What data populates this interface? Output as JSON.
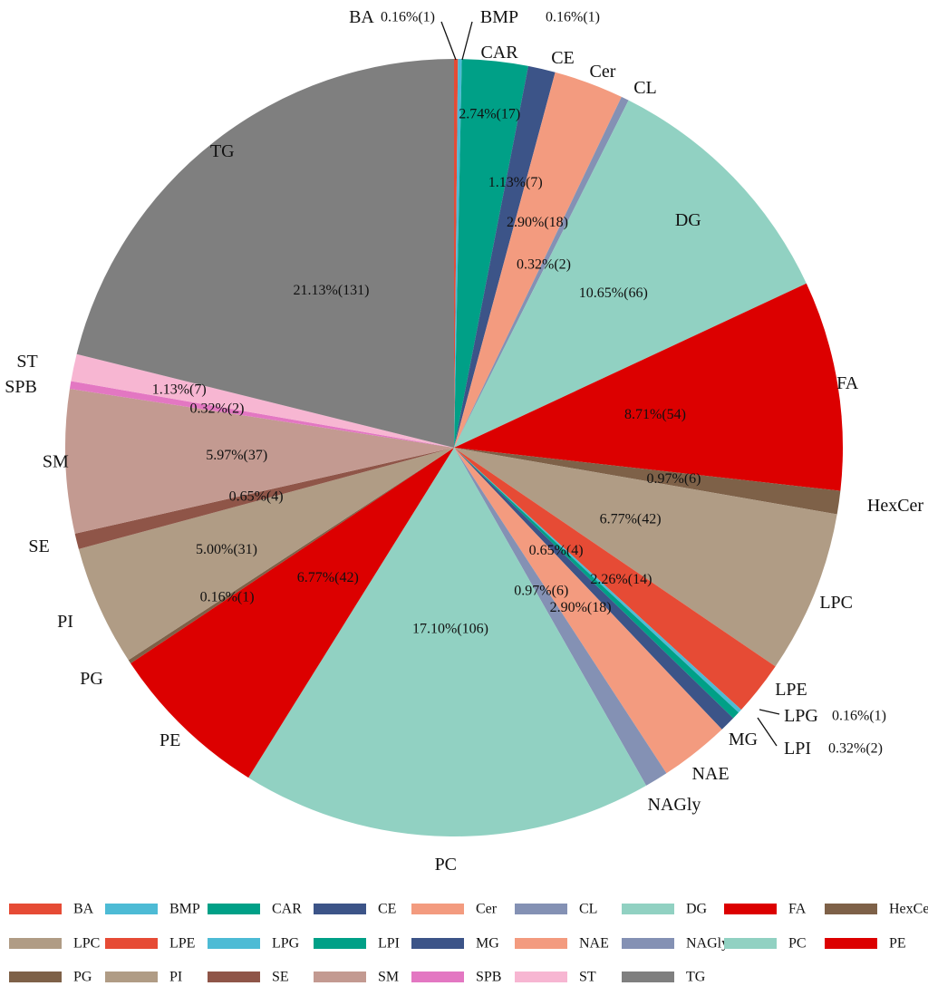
{
  "chart_data": {
    "type": "pie",
    "title": "",
    "slices": [
      {
        "label": "BA",
        "value": 0.16,
        "count": 1,
        "text": "0.16%(1)",
        "color": "#e64b35"
      },
      {
        "label": "BMP",
        "value": 0.16,
        "count": 1,
        "text": "0.16%(1)",
        "color": "#4dbbd5"
      },
      {
        "label": "CAR",
        "value": 2.74,
        "count": 17,
        "text": "2.74%(17)",
        "color": "#00a087"
      },
      {
        "label": "CE",
        "value": 1.13,
        "count": 7,
        "text": "1.13%(7)",
        "color": "#3c5488"
      },
      {
        "label": "Cer",
        "value": 2.9,
        "count": 18,
        "text": "2.90%(18)",
        "color": "#f39b7f"
      },
      {
        "label": "CL",
        "value": 0.32,
        "count": 2,
        "text": "0.32%(2)",
        "color": "#8491b4"
      },
      {
        "label": "DG",
        "value": 10.65,
        "count": 66,
        "text": "10.65%(66)",
        "color": "#91d1c2"
      },
      {
        "label": "FA",
        "value": 8.71,
        "count": 54,
        "text": "8.71%(54)",
        "color": "#dc0000"
      },
      {
        "label": "HexCer",
        "value": 0.97,
        "count": 6,
        "text": "0.97%(6)",
        "color": "#7e6148"
      },
      {
        "label": "LPC",
        "value": 6.77,
        "count": 42,
        "text": "6.77%(42)",
        "color": "#b09c85"
      },
      {
        "label": "LPE",
        "value": 2.26,
        "count": 14,
        "text": "2.26%(14)",
        "color": "#e64b35"
      },
      {
        "label": "LPG",
        "value": 0.16,
        "count": 1,
        "text": "0.16%(1)",
        "color": "#4dbbd5"
      },
      {
        "label": "LPI",
        "value": 0.32,
        "count": 2,
        "text": "0.32%(2)",
        "color": "#00a087"
      },
      {
        "label": "MG",
        "value": 0.65,
        "count": 4,
        "text": "0.65%(4)",
        "color": "#3c5488"
      },
      {
        "label": "NAE",
        "value": 2.9,
        "count": 18,
        "text": "2.90%(18)",
        "color": "#f39b7f"
      },
      {
        "label": "NAGly",
        "value": 0.97,
        "count": 6,
        "text": "0.97%(6)",
        "color": "#8491b4"
      },
      {
        "label": "PC",
        "value": 17.1,
        "count": 106,
        "text": "17.10%(106)",
        "color": "#91d1c2"
      },
      {
        "label": "PE",
        "value": 6.77,
        "count": 42,
        "text": "6.77%(42)",
        "color": "#dc0000"
      },
      {
        "label": "PG",
        "value": 0.16,
        "count": 1,
        "text": "0.16%(1)",
        "color": "#7e6148"
      },
      {
        "label": "PI",
        "value": 5.0,
        "count": 31,
        "text": "5.00%(31)",
        "color": "#b09c85"
      },
      {
        "label": "SE",
        "value": 0.65,
        "count": 4,
        "text": "0.65%(4)",
        "color": "#8f5548"
      },
      {
        "label": "SM",
        "value": 5.97,
        "count": 37,
        "text": "5.97%(37)",
        "color": "#c39a91"
      },
      {
        "label": "SPB",
        "value": 0.32,
        "count": 2,
        "text": "0.32%(2)",
        "color": "#e377c2"
      },
      {
        "label": "ST",
        "value": 1.13,
        "count": 7,
        "text": "1.13%(7)",
        "color": "#f7b6d2"
      },
      {
        "label": "TG",
        "value": 21.13,
        "count": 131,
        "text": "21.13%(131)",
        "color": "#7f7f7f"
      }
    ],
    "legend_placement": "bottom"
  }
}
